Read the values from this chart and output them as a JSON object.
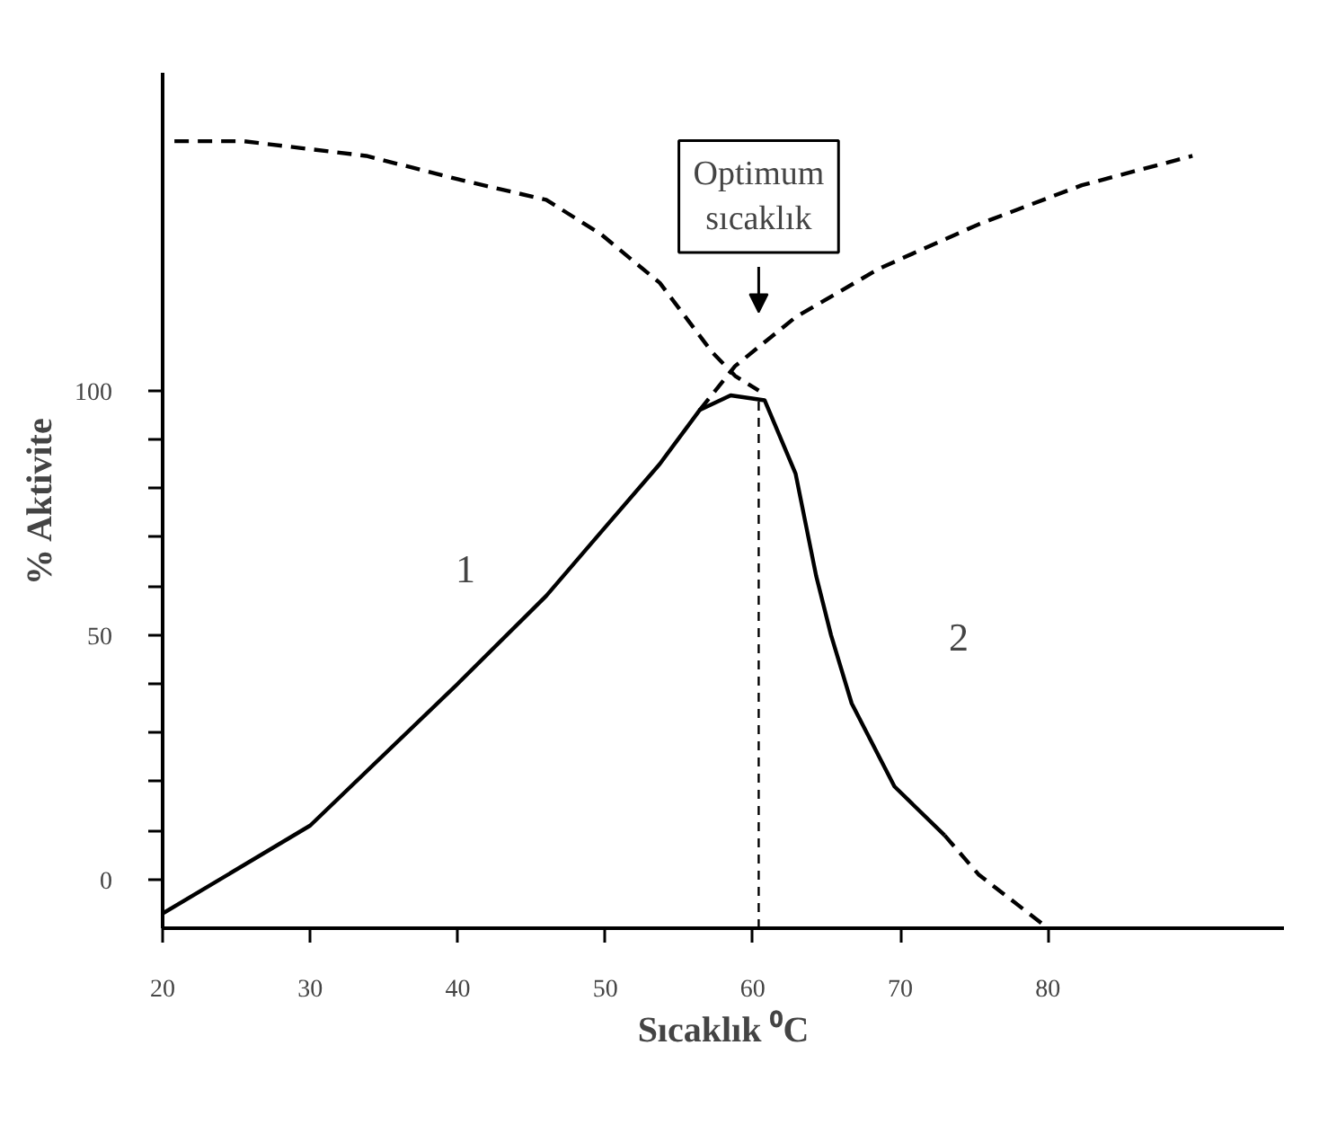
{
  "chart_data": {
    "type": "line",
    "xlabel": "Sıcaklık ⁰C",
    "ylabel": "% Aktivite",
    "xlim": [
      20,
      96
    ],
    "ylim": [
      -10,
      165
    ],
    "xticks": [
      20,
      30,
      40,
      50,
      60,
      70,
      80
    ],
    "yticks": [
      0,
      {
        "value": 10,
        "label": null
      },
      {
        "value": 20,
        "label": null
      },
      {
        "value": 30,
        "label": null
      },
      {
        "value": 40,
        "label": null
      },
      50,
      {
        "value": 60,
        "label": null
      },
      {
        "value": 70,
        "label": null
      },
      {
        "value": 80,
        "label": null
      },
      {
        "value": 90,
        "label": null
      },
      100
    ],
    "grid": false,
    "marker": "none",
    "series": [
      {
        "color": "#000000",
        "line_style": "solid",
        "x": [
          20,
          30,
          40,
          46,
          49.7,
          53.7,
          56.4,
          58.5,
          60.8,
          62.9,
          64.3,
          65.3,
          66.7,
          69.6,
          73
        ],
        "values": [
          -7,
          11,
          40,
          58,
          71,
          85,
          96,
          99,
          98,
          83,
          62,
          50,
          36,
          19,
          9
        ]
      },
      {
        "color": "#000000",
        "line_style": "dashed",
        "x": [
          73,
          75.3,
          80
        ],
        "values": [
          9,
          1,
          -10
        ]
      },
      {
        "color": "#000000",
        "line_style": "dashed",
        "x": [
          20.8,
          25.5,
          33.8,
          40.3,
          46,
          49.7,
          53.7,
          57.2,
          58.8,
          60.4
        ],
        "values": [
          151,
          151,
          148,
          143,
          139,
          132,
          122,
          108,
          103,
          100
        ]
      },
      {
        "color": "#000000",
        "line_style": "dashed",
        "x": [
          56.4,
          58.8,
          62.9,
          68.6,
          75.3,
          82.3,
          89.8
        ],
        "values": [
          96,
          105,
          115,
          125,
          134,
          142,
          148
        ]
      },
      {
        "color": "#000000",
        "line_style": "dotted",
        "x": [
          60.4,
          60.4
        ],
        "values": [
          -10,
          98
        ]
      }
    ],
    "annotations": [
      "Optimum\nsıcaklık",
      "1",
      "2"
    ]
  }
}
